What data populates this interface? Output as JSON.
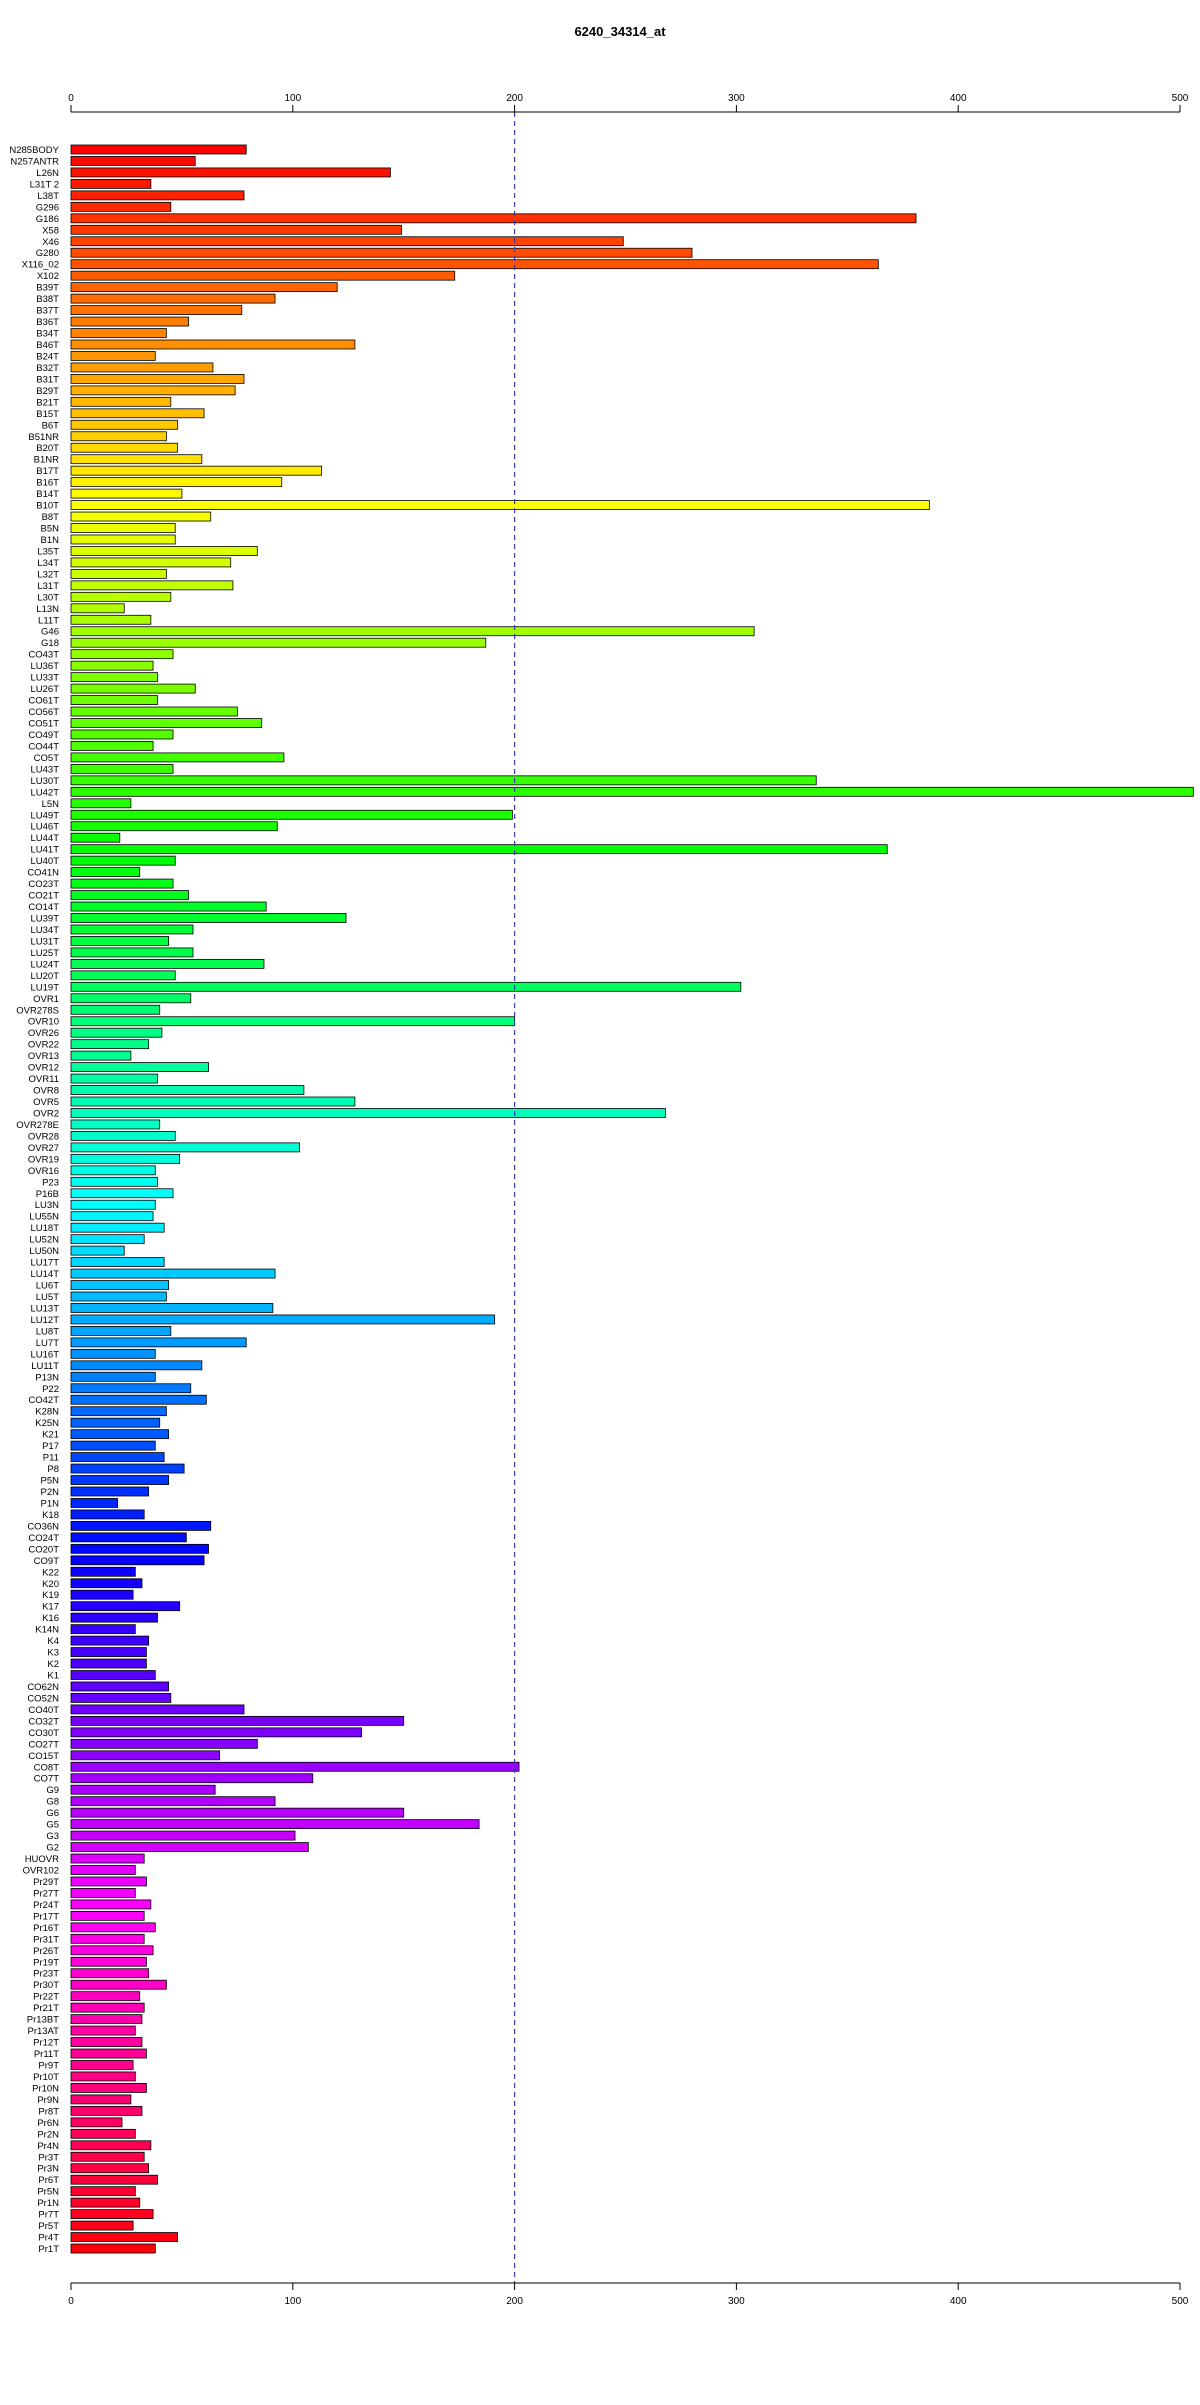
{
  "chart_data": {
    "type": "bar",
    "orientation": "horizontal",
    "title": "6240_34314_at",
    "xlabel": "",
    "ylabel": "",
    "xlim": [
      0,
      500
    ],
    "x_ticks": [
      0,
      100,
      200,
      300,
      400,
      500
    ],
    "reference_line": 200,
    "grid": false,
    "legend": "none",
    "bar_colors": "rainbow gradient from red through magenta, blue, cyan, green, yellow to red",
    "categories": [
      "N285BODY",
      "N257ANTR",
      "L26N",
      "L31T 2",
      "L38T",
      "G296",
      "G186",
      "X58",
      "X46",
      "G280",
      "X116_02",
      "X102",
      "B39T",
      "B38T",
      "B37T",
      "B36T",
      "B34T",
      "B46T",
      "B24T",
      "B32T",
      "B31T",
      "B29T",
      "B21T",
      "B15T",
      "B6T",
      "B51NR",
      "B20T",
      "B1NR",
      "B17T",
      "B16T",
      "B14T",
      "B10T",
      "B8T",
      "B5N",
      "B1N",
      "L35T",
      "L34T",
      "L32T",
      "L31T",
      "L30T",
      "L13N",
      "L11T",
      "G46",
      "G18",
      "CO43T",
      "LU36T",
      "LU33T",
      "LU26T",
      "CO61T",
      "CO56T",
      "CO51T",
      "CO49T",
      "CO44T",
      "CO5T",
      "LU43T",
      "LU30T",
      "LU42T",
      "L5N",
      "LU49T",
      "LU46T",
      "LU44T",
      "LU41T",
      "LU40T",
      "CO41N",
      "CO23T",
      "CO21T",
      "CO14T",
      "LU39T",
      "LU34T",
      "LU31T",
      "LU25T",
      "LU24T",
      "LU20T",
      "LU19T",
      "OVR1",
      "OVR278S",
      "OVR10",
      "OVR26",
      "OVR22",
      "OVR13",
      "OVR12",
      "OVR11",
      "OVR8",
      "OVR5",
      "OVR2",
      "OVR278E",
      "OVR28",
      "OVR27",
      "OVR19",
      "OVR16",
      "P23",
      "P16B",
      "LU3N",
      "LU55N",
      "LU18T",
      "LU52N",
      "LU50N",
      "LU17T",
      "LU14T",
      "LU6T",
      "LU5T",
      "LU13T",
      "LU12T",
      "LU8T",
      "LU7T",
      "LU16T",
      "LU11T",
      "P13N",
      "P22",
      "CO42T",
      "K28N",
      "K25N",
      "K21",
      "P17",
      "P11",
      "P8",
      "P5N",
      "P2N",
      "P1N",
      "K18",
      "CO36N",
      "CO24T",
      "CO20T",
      "CO9T",
      "K22",
      "K20",
      "K19",
      "K17",
      "K16",
      "K14N",
      "K4",
      "K3",
      "K2",
      "K1",
      "CO62N",
      "CO52N",
      "CO40T",
      "CO32T",
      "CO30T",
      "CO27T",
      "CO15T",
      "CO8T",
      "CO7T",
      "G9",
      "G8",
      "G6",
      "G5",
      "G3",
      "G2",
      "HUOVR",
      "OVR102",
      "Pr29T",
      "Pr27T",
      "Pr24T",
      "Pr17T",
      "Pr16T",
      "Pr31T",
      "Pr26T",
      "Pr19T",
      "Pr23T",
      "Pr30T",
      "Pr22T",
      "Pr21T",
      "Pr13BT",
      "Pr13AT",
      "Pr12T",
      "Pr11T",
      "Pr9T",
      "Pr10T",
      "Pr10N",
      "Pr9N",
      "Pr8T",
      "Pr6N",
      "Pr2N",
      "Pr4N",
      "Pr3T",
      "Pr3N",
      "Pr6T",
      "Pr5N",
      "Pr1N",
      "Pr7T",
      "Pr5T",
      "Pr4T",
      "Pr1T"
    ],
    "values": [
      79,
      56,
      144,
      36,
      78,
      45,
      381,
      149,
      249,
      280,
      364,
      173,
      120,
      92,
      77,
      53,
      43,
      128,
      38,
      64,
      78,
      74,
      45,
      60,
      48,
      43,
      48,
      59,
      113,
      95,
      50,
      387,
      63,
      47,
      47,
      84,
      72,
      43,
      73,
      45,
      24,
      36,
      308,
      187,
      46,
      37,
      39,
      56,
      39,
      75,
      86,
      46,
      37,
      96,
      46,
      336,
      506,
      27,
      199,
      93,
      22,
      368,
      47,
      31,
      46,
      53,
      88,
      124,
      55,
      44,
      55,
      87,
      47,
      302,
      54,
      40,
      200,
      41,
      35,
      27,
      62,
      39,
      105,
      128,
      268,
      40,
      47,
      103,
      49,
      38,
      39,
      46,
      38,
      37,
      42,
      33,
      24,
      42,
      92,
      44,
      43,
      91,
      191,
      45,
      79,
      38,
      59,
      38,
      54,
      61,
      43,
      40,
      44,
      38,
      42,
      51,
      44,
      35,
      21,
      33,
      63,
      52,
      62,
      60,
      29,
      32,
      28,
      49,
      39,
      29,
      35,
      34,
      34,
      38,
      44,
      45,
      78,
      150,
      131,
      84,
      67,
      202,
      109,
      65,
      92,
      150,
      184,
      101,
      107,
      33,
      29,
      34,
      29,
      36,
      33,
      38,
      33,
      37,
      34,
      35,
      43,
      31,
      33,
      32,
      29,
      32,
      34,
      28,
      29,
      34,
      27,
      32,
      23,
      29,
      36,
      33,
      35,
      39,
      29,
      31,
      37,
      28,
      48,
      38
    ]
  }
}
